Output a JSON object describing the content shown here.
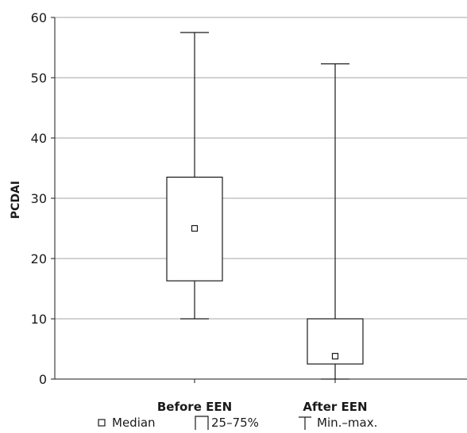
{
  "chart_data": {
    "type": "boxplot",
    "ylabel": "PCDAI",
    "ylim": [
      0,
      60
    ],
    "yticks": [
      0,
      10,
      20,
      30,
      40,
      50,
      60
    ],
    "grid": true,
    "categories": [
      "Before EEN",
      "After EEN"
    ],
    "boxes": [
      {
        "category": "Before EEN",
        "min": 10,
        "q1": 16.3,
        "median": 25,
        "q3": 33.5,
        "max": 57.5
      },
      {
        "category": "After EEN",
        "min": 0,
        "q1": 2.5,
        "median": 3.8,
        "q3": 10,
        "max": 52.3
      }
    ],
    "legend": {
      "position": "bottom",
      "items": [
        {
          "symbol": "median-square",
          "label": "Median"
        },
        {
          "symbol": "box",
          "label": "25–75%"
        },
        {
          "symbol": "whisker",
          "label": "Min.–max."
        }
      ]
    },
    "colors": {
      "box_fill": "#ffffff",
      "stroke": "#1a1a1a",
      "grid": "#a6a6a6"
    }
  }
}
